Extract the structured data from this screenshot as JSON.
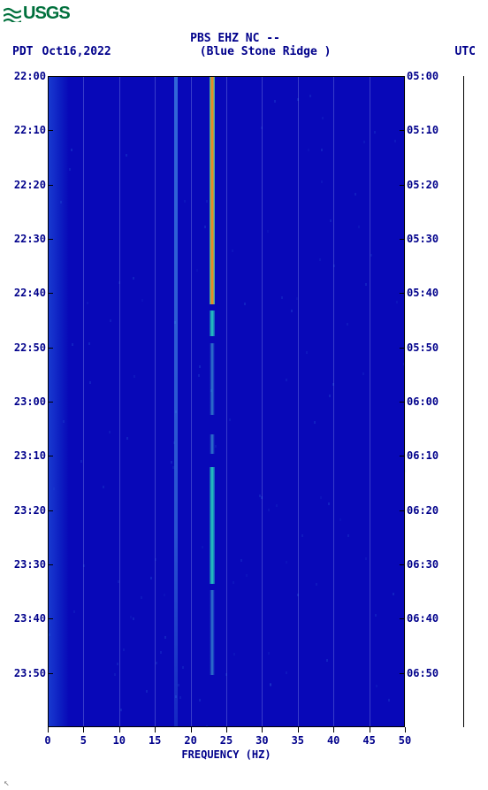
{
  "logo": {
    "text": "USGS",
    "color": "#00703c"
  },
  "header": {
    "title": "PBS EHZ NC --",
    "subtitle": "(Blue Stone Ridge )",
    "left_tz": "PDT",
    "date": "Oct16,2022",
    "right_tz": "UTC",
    "text_color": "#00008b",
    "fontsize": 13
  },
  "spectrogram": {
    "type": "heatmap",
    "background_color": "#0808b8",
    "low_color": "#0808b8",
    "mid_color": "#1040d8",
    "band_color": "#2af0c0",
    "peak_color": "#f05020",
    "x_label": "FREQUENCY (HZ)",
    "xlim": [
      0,
      50
    ],
    "xtick_step": 5,
    "x_ticks": [
      0,
      5,
      10,
      15,
      20,
      25,
      30,
      35,
      40,
      45,
      50
    ],
    "left_time_ticks": [
      "22:00",
      "22:10",
      "22:20",
      "22:30",
      "22:40",
      "22:50",
      "23:00",
      "23:10",
      "23:20",
      "23:30",
      "23:40",
      "23:50"
    ],
    "right_time_ticks": [
      "05:00",
      "05:10",
      "05:20",
      "05:30",
      "05:40",
      "05:50",
      "06:00",
      "06:10",
      "06:20",
      "06:30",
      "06:40",
      "06:50"
    ],
    "feature_bands": [
      {
        "freq": 23,
        "width": 1.2,
        "intensity": "high",
        "extent": [
          0,
          0.92
        ]
      },
      {
        "freq": 18,
        "width": 0.8,
        "intensity": "low",
        "extent": [
          0,
          0.95
        ]
      },
      {
        "freq": 1,
        "width": 1.5,
        "intensity": "low-blotchy",
        "extent": [
          0,
          1.0
        ]
      }
    ],
    "grid_color": "rgba(200,220,255,0.25)",
    "axis_color": "#00008b",
    "tick_fontsize": 12,
    "label_fontsize": 12
  }
}
